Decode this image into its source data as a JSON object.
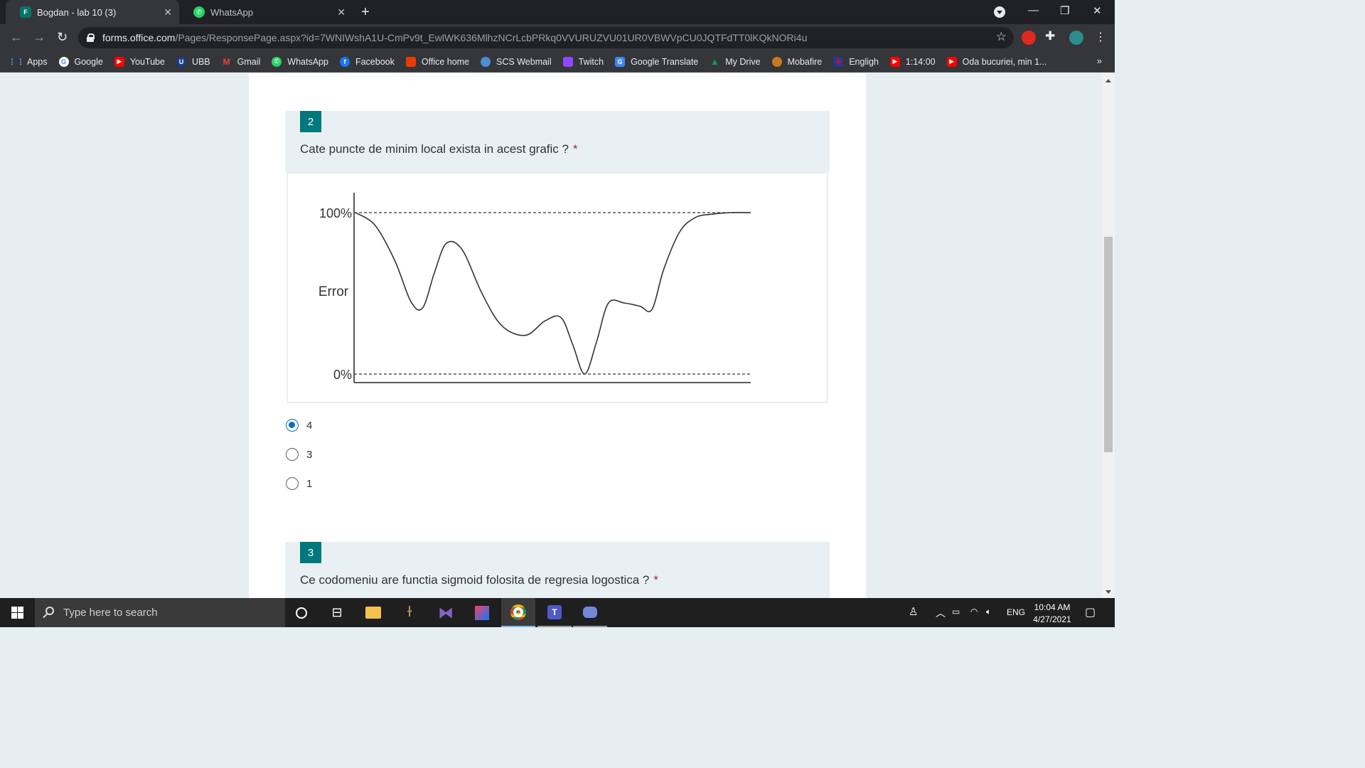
{
  "browser": {
    "tabs": [
      {
        "title": "Bogdan - lab 10 (3)",
        "active": true
      },
      {
        "title": "WhatsApp",
        "active": false
      }
    ],
    "url_host": "forms.office.com",
    "url_path": "/Pages/ResponsePage.aspx?id=7WNIWshA1U-CmPv9t_EwlWK636MlhzNCrLcbPRkq0VVURUZVU01UR0VBWVpCU0JQTFdTT0lKQkNORi4u",
    "bookmarks": [
      {
        "label": "Apps",
        "icon": "apps-grid-icon",
        "color": "#e8eaed"
      },
      {
        "label": "Google",
        "icon": "google-icon",
        "color": "#ffffff"
      },
      {
        "label": "YouTube",
        "icon": "youtube-icon",
        "color": "#ff0000"
      },
      {
        "label": "UBB",
        "icon": "ubb-icon",
        "color": "#1a3c8c"
      },
      {
        "label": "Gmail",
        "icon": "gmail-icon",
        "color": "#ea4335"
      },
      {
        "label": "WhatsApp",
        "icon": "whatsapp-icon",
        "color": "#25d366"
      },
      {
        "label": "Facebook",
        "icon": "facebook-icon",
        "color": "#1877f2"
      },
      {
        "label": "Office home",
        "icon": "office-icon",
        "color": "#eb3c00"
      },
      {
        "label": "SCS Webmail",
        "icon": "webmail-icon",
        "color": "#4a8fd6"
      },
      {
        "label": "Twitch",
        "icon": "twitch-icon",
        "color": "#9146ff"
      },
      {
        "label": "Google Translate",
        "icon": "translate-icon",
        "color": "#4285f4"
      },
      {
        "label": "My Drive",
        "icon": "drive-icon",
        "color": "#0f9d58"
      },
      {
        "label": "Mobafire",
        "icon": "mobafire-icon",
        "color": "#c8781e"
      },
      {
        "label": "Engligh",
        "icon": "uk-flag-icon",
        "color": "#c8102e"
      },
      {
        "label": "1:14:00",
        "icon": "youtube-icon",
        "color": "#ff0000"
      },
      {
        "label": "Oda bucuriei, min 1...",
        "icon": "youtube-icon",
        "color": "#ff0000"
      }
    ],
    "bookmarks_more": "»"
  },
  "form": {
    "question2": {
      "number": "2",
      "text": "Cate puncte de minim local exista in acest grafic ?",
      "required_mark": "*",
      "options": [
        {
          "label": "4",
          "selected": true
        },
        {
          "label": "3",
          "selected": false
        },
        {
          "label": "1",
          "selected": false
        }
      ]
    },
    "question3": {
      "number": "3",
      "text": "Ce codomeniu are functia sigmoid folosita de regresia logostica ?",
      "required_mark": "*"
    }
  },
  "chart_data": {
    "type": "line",
    "title": "",
    "xlabel": "",
    "ylabel": "Error",
    "y_tick_labels": [
      "100%",
      "0%"
    ],
    "ylim": [
      0,
      100
    ],
    "reference_lines": [
      100,
      0
    ],
    "x": [
      0,
      5,
      10,
      14,
      17,
      20,
      23,
      27,
      32,
      37,
      43,
      48,
      52,
      55,
      58,
      61,
      64,
      68,
      72,
      75,
      78,
      82,
      86,
      90,
      95,
      100
    ],
    "values": [
      100,
      92,
      70,
      45,
      41,
      63,
      81,
      77,
      50,
      30,
      24,
      33,
      35,
      18,
      0,
      20,
      44,
      44,
      42,
      40,
      65,
      88,
      97,
      99,
      100,
      100
    ],
    "local_minima_count_visible": 4,
    "grid": false
  },
  "taskbar": {
    "search_placeholder": "Type here to search",
    "language": "ENG",
    "time": "10:04 AM",
    "date": "4/27/2021"
  }
}
